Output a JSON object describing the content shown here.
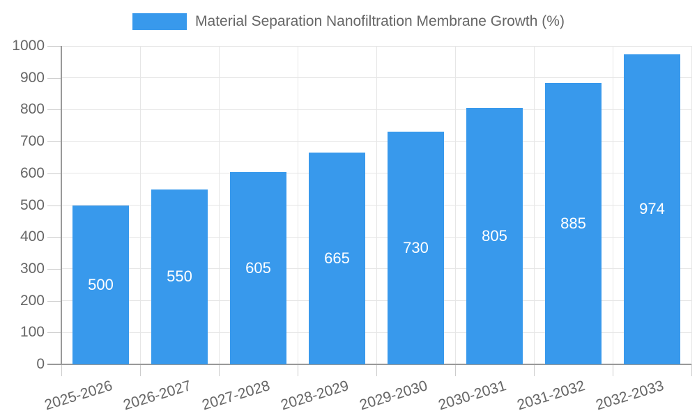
{
  "chart_data": {
    "type": "bar",
    "title": "Material Separation Nanofiltration Membrane Growth (%)",
    "legend_position": "top",
    "categories": [
      "2025-2026",
      "2026-2027",
      "2027-2028",
      "2028-2029",
      "2029-2030",
      "2030-2031",
      "2031-2032",
      "2032-2033"
    ],
    "series": [
      {
        "name": "Material Separation Nanofiltration Membrane Growth (%)",
        "values": [
          500,
          550,
          605,
          665,
          730,
          805,
          885,
          974
        ]
      }
    ],
    "xlabel": "",
    "ylabel": "",
    "ylim": [
      0,
      1000
    ],
    "yticks": [
      0,
      100,
      200,
      300,
      400,
      500,
      600,
      700,
      800,
      900,
      1000
    ],
    "grid": true,
    "colors": {
      "bar": "#3899EC",
      "value_label": "#FFFFFF",
      "axis_text": "#666666",
      "grid_line": "#E6E6E6",
      "tick_line": "#CCCCCC",
      "axis_line": "#999999"
    }
  }
}
